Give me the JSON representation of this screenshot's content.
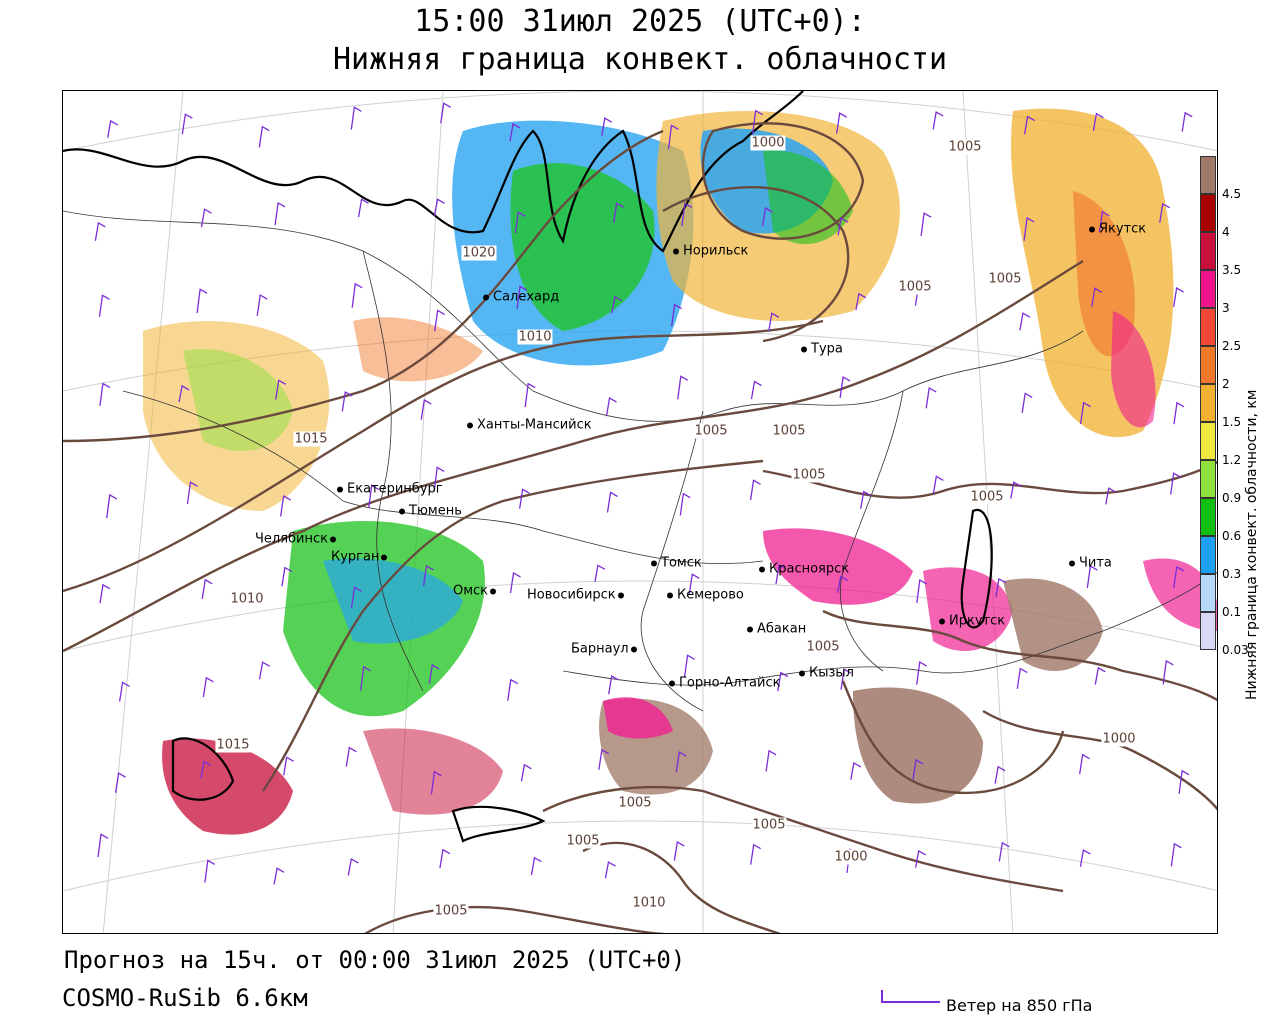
{
  "title_line1": "15:00 31июл 2025 (UTC+0):",
  "title_line2": "Нижняя граница конвект. облачности",
  "footer_forecast": "Прогноз на 15ч. от 00:00 31июл 2025 (UTC+0)",
  "footer_model": "COSMO-RuSib 6.6км",
  "wind_legend_label": "Ветер на 850 гПа",
  "legend": {
    "title": "Нижняя граница конвект. облачности, км",
    "ticks": [
      "0.03",
      "0.1",
      "0.3",
      "0.6",
      "0.9",
      "1.2",
      "1.5",
      "2",
      "2.5",
      "3",
      "3.5",
      "4",
      "4.5"
    ],
    "colors": [
      "#d8d8f4",
      "#b4d8f8",
      "#1ea0f0",
      "#10c010",
      "#8ee03c",
      "#f0e840",
      "#f0b030",
      "#f07828",
      "#f04838",
      "#f0148c",
      "#c8103c",
      "#a80000",
      "#a07868"
    ]
  },
  "cities": [
    {
      "name": "Салехард"
    },
    {
      "name": "Норильск"
    },
    {
      "name": "Тура"
    },
    {
      "name": "Якутск"
    },
    {
      "name": "Ханты-Мансийск"
    },
    {
      "name": "Екатеринбург"
    },
    {
      "name": "Тюмень"
    },
    {
      "name": "Челябинск"
    },
    {
      "name": "Курган"
    },
    {
      "name": "Омск"
    },
    {
      "name": "Новосибирск"
    },
    {
      "name": "Томск"
    },
    {
      "name": "Кемерово"
    },
    {
      "name": "Красноярск"
    },
    {
      "name": "Абакан"
    },
    {
      "name": "Барнаул"
    },
    {
      "name": "Горно-Алтайск"
    },
    {
      "name": "Кызыл"
    },
    {
      "name": "Иркутск"
    },
    {
      "name": "Чита"
    }
  ],
  "isobar_labels": [
    "1000",
    "1005",
    "1005",
    "1005",
    "1005",
    "1005",
    "1005",
    "1015",
    "1020",
    "1010",
    "1010",
    "1005",
    "1005",
    "1005",
    "1000",
    "1000",
    "1005",
    "1010",
    "1015",
    "1005",
    "1005"
  ]
}
